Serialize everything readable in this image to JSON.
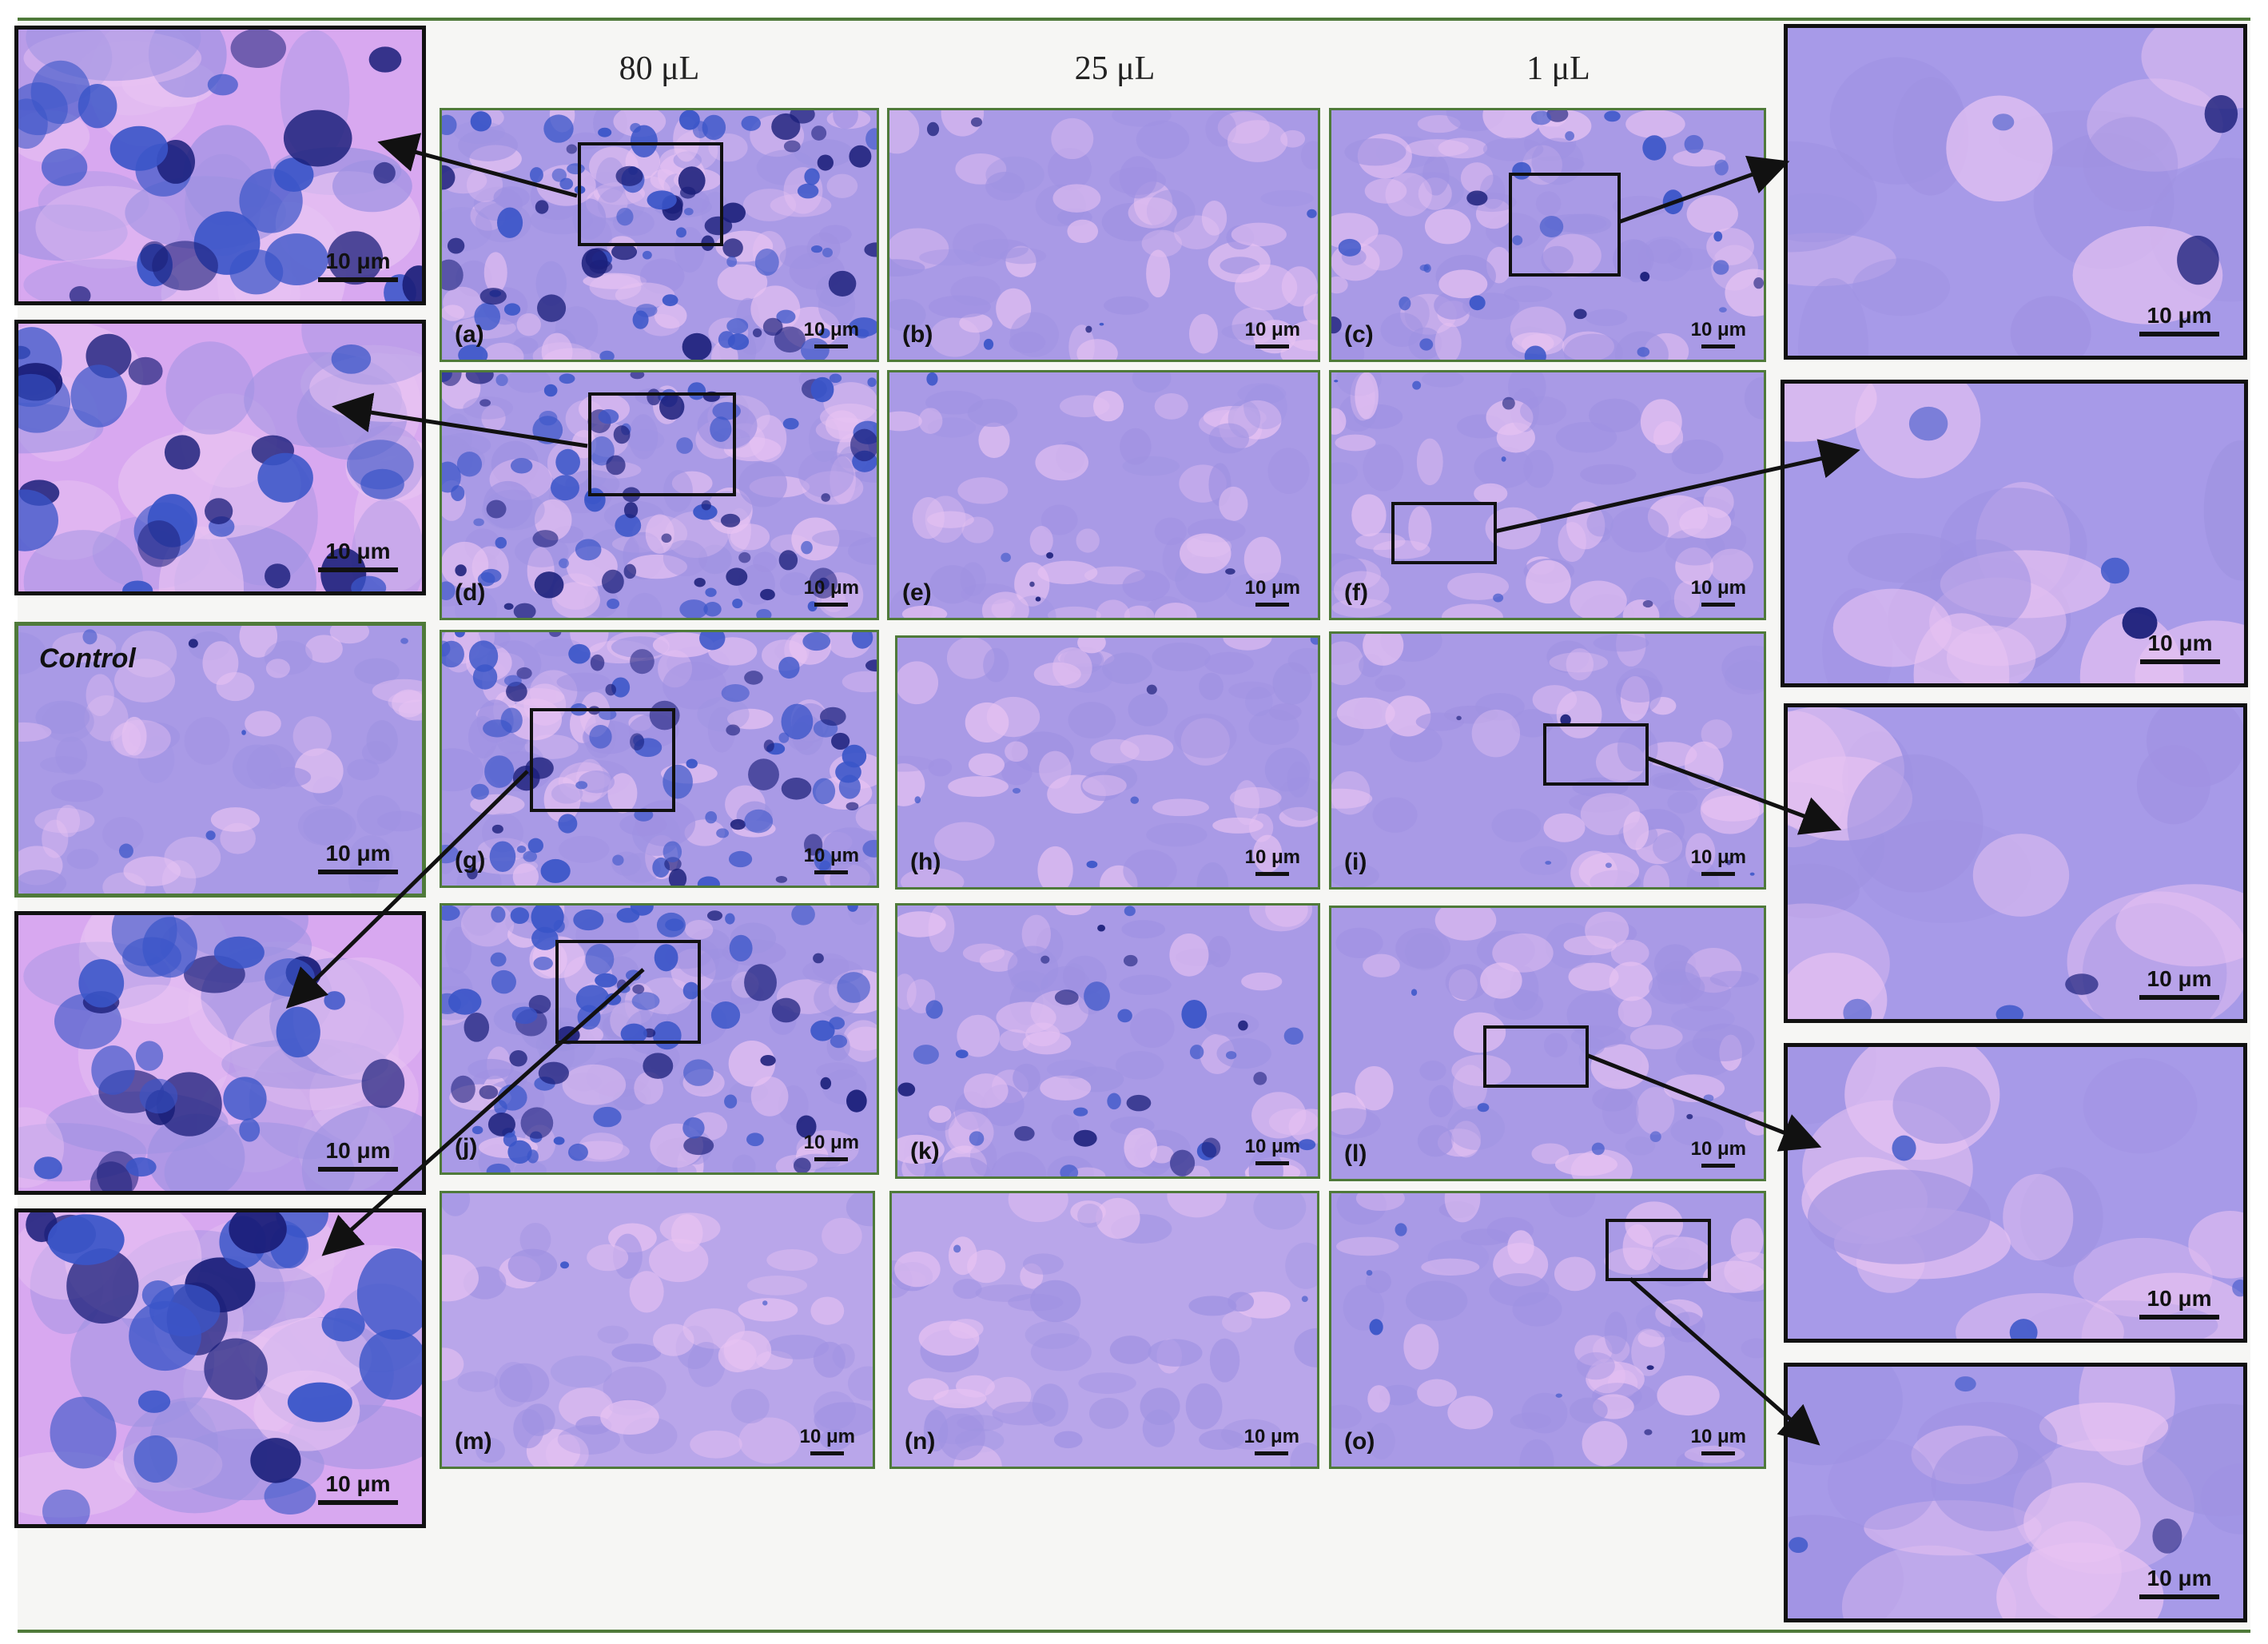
{
  "column_headers": [
    "80 μL",
    "25 μL",
    "1 μL"
  ],
  "panels": [
    {
      "id": "a",
      "label": "(a)",
      "scale": "10 μm",
      "stain": "heavy"
    },
    {
      "id": "b",
      "label": "(b)",
      "scale": "10 μm",
      "stain": "light"
    },
    {
      "id": "c",
      "label": "(c)",
      "scale": "10 μm",
      "stain": "medium"
    },
    {
      "id": "d",
      "label": "(d)",
      "scale": "10 μm",
      "stain": "heavy"
    },
    {
      "id": "e",
      "label": "(e)",
      "scale": "10 μm",
      "stain": "light"
    },
    {
      "id": "f",
      "label": "(f)",
      "scale": "10 μm",
      "stain": "light"
    },
    {
      "id": "g",
      "label": "(g)",
      "scale": "10 μm",
      "stain": "heavy"
    },
    {
      "id": "h",
      "label": "(h)",
      "scale": "10 μm",
      "stain": "light"
    },
    {
      "id": "i",
      "label": "(i)",
      "scale": "10 μm",
      "stain": "light"
    },
    {
      "id": "j",
      "label": "(j)",
      "scale": "10 μm",
      "stain": "heavy"
    },
    {
      "id": "k",
      "label": "(k)",
      "scale": "10 μm",
      "stain": "medium"
    },
    {
      "id": "l",
      "label": "(l)",
      "scale": "10 μm",
      "stain": "light"
    },
    {
      "id": "m",
      "label": "(m)",
      "scale": "10 μm",
      "stain": "pale"
    },
    {
      "id": "n",
      "label": "(n)",
      "scale": "10 μm",
      "stain": "pale"
    },
    {
      "id": "o",
      "label": "(o)",
      "scale": "10 μm",
      "stain": "light"
    }
  ],
  "left_insets": [
    {
      "id": "L1",
      "scale": "10 μm",
      "stain": "zoom-heavy"
    },
    {
      "id": "L2",
      "scale": "10 μm",
      "stain": "zoom-heavy"
    },
    {
      "id": "control",
      "title": "Control",
      "scale": "10 μm",
      "stain": "light"
    },
    {
      "id": "L4",
      "scale": "10 μm",
      "stain": "zoom-heavy"
    },
    {
      "id": "L5",
      "scale": "10 μm",
      "stain": "zoom-heavy"
    }
  ],
  "right_insets": [
    {
      "id": "R1",
      "scale": "10 μm",
      "stain": "zoom-light"
    },
    {
      "id": "R2",
      "scale": "10 μm",
      "stain": "zoom-light"
    },
    {
      "id": "R3",
      "scale": "10 μm",
      "stain": "zoom-light"
    },
    {
      "id": "R4",
      "scale": "10 μm",
      "stain": "zoom-light"
    },
    {
      "id": "R5",
      "scale": "10 μm",
      "stain": "zoom-light"
    }
  ],
  "colors": {
    "frame_border": "#4f7a3a",
    "cell_pink": "#d8a8f0",
    "cell_lavender": "#a99ae6",
    "stain_blue": "#3a55c8",
    "stain_dark": "#1b1f7a"
  }
}
